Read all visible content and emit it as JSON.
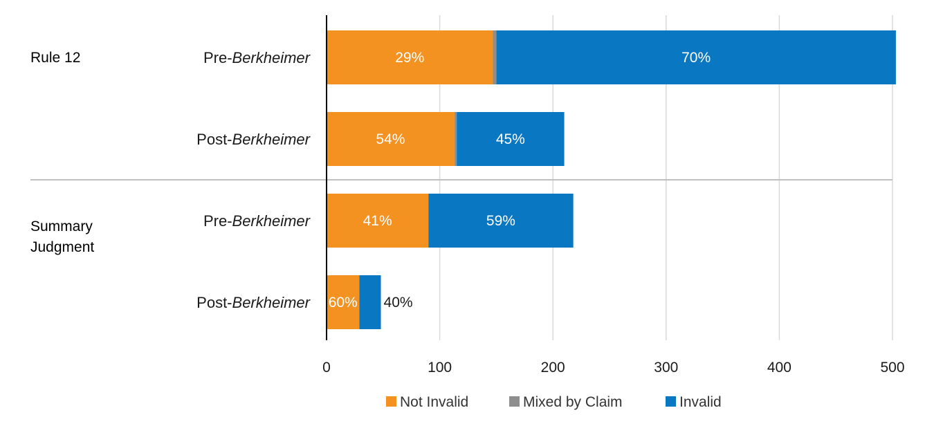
{
  "chart_data": {
    "type": "bar",
    "orientation": "horizontal",
    "stacked": true,
    "xlim": [
      0,
      500
    ],
    "xticks": [
      0,
      100,
      200,
      300,
      400,
      500
    ],
    "grid": true,
    "legend_position": "bottom",
    "colors": {
      "Not Invalid": "#f39121",
      "Mixed by Claim": "#8e8e8e",
      "Invalid": "#0a77c2"
    },
    "groups": [
      {
        "label": "Rule 12",
        "label_lines": [
          "Rule 12"
        ]
      },
      {
        "label": "Summary Judgment",
        "label_lines": [
          "Summary",
          "Judgment"
        ]
      }
    ],
    "rows": [
      {
        "group": "Rule 12",
        "label_prefix": "Pre-",
        "label_italic": "Berkheimer",
        "segments": [
          {
            "series": "Not Invalid",
            "value": 147,
            "label": "29%"
          },
          {
            "series": "Mixed by Claim",
            "value": 3,
            "label": ""
          },
          {
            "series": "Invalid",
            "value": 353,
            "label": "70%"
          }
        ]
      },
      {
        "group": "Rule 12",
        "label_prefix": "Post-",
        "label_italic": "Berkheimer",
        "segments": [
          {
            "series": "Not Invalid",
            "value": 113,
            "label": "54%"
          },
          {
            "series": "Mixed by Claim",
            "value": 2,
            "label": ""
          },
          {
            "series": "Invalid",
            "value": 95,
            "label": "45%"
          }
        ]
      },
      {
        "group": "Summary Judgment",
        "label_prefix": "Pre-",
        "label_italic": "Berkheimer",
        "segments": [
          {
            "series": "Not Invalid",
            "value": 90,
            "label": "41%"
          },
          {
            "series": "Mixed by Claim",
            "value": 0,
            "label": ""
          },
          {
            "series": "Invalid",
            "value": 128,
            "label": "59%"
          }
        ]
      },
      {
        "group": "Summary Judgment",
        "label_prefix": "Post-",
        "label_italic": "Berkheimer",
        "segments": [
          {
            "series": "Not Invalid",
            "value": 29,
            "label": "60%"
          },
          {
            "series": "Mixed by Claim",
            "value": 0,
            "label": ""
          },
          {
            "series": "Invalid",
            "value": 19,
            "label": "40%"
          }
        ]
      }
    ],
    "legend": [
      "Not Invalid",
      "Mixed by Claim",
      "Invalid"
    ]
  }
}
